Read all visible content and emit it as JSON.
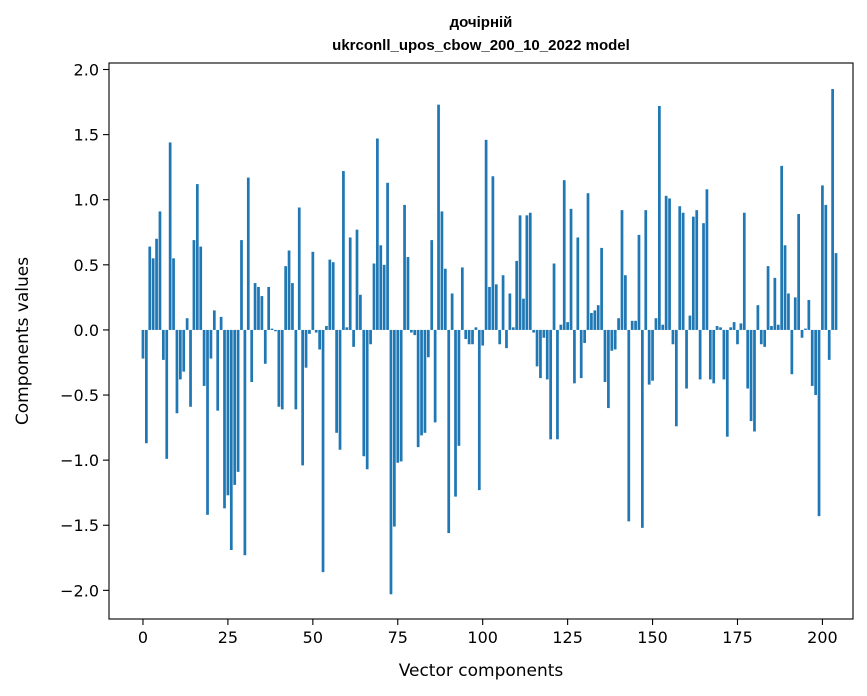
{
  "chart_data": {
    "type": "bar",
    "title": [
      "дочірній",
      "ukrconll_upos_cbow_200_10_2022 model"
    ],
    "xlabel": "Vector components",
    "ylabel": "Components values",
    "xlim": [
      -10,
      209
    ],
    "ylim": [
      -2.22,
      2.05
    ],
    "xticks": [
      0,
      25,
      50,
      75,
      100,
      125,
      150,
      175,
      200
    ],
    "yticks": [
      -2.0,
      -1.5,
      -1.0,
      -0.5,
      0.0,
      0.5,
      1.0,
      1.5,
      2.0
    ],
    "xtick_labels": [
      "0",
      "25",
      "50",
      "75",
      "100",
      "125",
      "150",
      "175",
      "200"
    ],
    "ytick_labels": [
      "−2.0",
      "−1.5",
      "−1.0",
      "−0.5",
      "0.0",
      "0.5",
      "1.0",
      "1.5",
      "2.0"
    ],
    "grid": false,
    "bar_color": "#1f77b4",
    "values": [
      -0.22,
      -0.87,
      0.64,
      0.55,
      0.7,
      0.91,
      -0.23,
      -0.99,
      1.44,
      0.55,
      -0.64,
      -0.38,
      -0.32,
      0.09,
      -0.59,
      0.69,
      1.12,
      0.64,
      -0.43,
      -1.42,
      -0.22,
      0.15,
      -0.62,
      0.1,
      -1.37,
      -1.27,
      -1.69,
      -1.19,
      -1.09,
      0.69,
      -1.73,
      1.17,
      -0.4,
      0.36,
      0.33,
      0.26,
      -0.26,
      0.33,
      0.01,
      -0.01,
      -0.59,
      -0.61,
      0.49,
      0.61,
      0.36,
      -0.61,
      0.94,
      -1.04,
      -0.29,
      -0.03,
      0.6,
      -0.02,
      -0.15,
      -1.86,
      0.03,
      0.54,
      0.52,
      -0.79,
      -0.92,
      1.22,
      0.02,
      0.71,
      -0.13,
      0.77,
      0.27,
      -0.97,
      -1.07,
      -0.11,
      0.51,
      1.47,
      0.65,
      0.5,
      1.13,
      -2.03,
      -1.51,
      -1.02,
      -1.01,
      0.96,
      0.56,
      -0.02,
      -0.04,
      -0.9,
      -0.81,
      -0.79,
      -0.21,
      0.69,
      -0.71,
      1.73,
      0.91,
      0.47,
      -1.56,
      0.28,
      -1.28,
      -0.89,
      0.48,
      -0.07,
      -0.11,
      -0.11,
      0.02,
      -1.23,
      -0.12,
      1.46,
      0.33,
      1.18,
      0.35,
      -0.11,
      0.42,
      -0.14,
      0.28,
      0.02,
      0.53,
      0.88,
      0.24,
      0.88,
      0.9,
      -0.02,
      -0.28,
      -0.37,
      -0.06,
      -0.38,
      -0.84,
      0.51,
      -0.84,
      0.04,
      1.15,
      0.06,
      0.93,
      -0.41,
      0.71,
      -0.37,
      -0.1,
      1.05,
      0.13,
      0.15,
      0.19,
      0.63,
      -0.4,
      -0.6,
      -0.16,
      -0.15,
      0.09,
      0.92,
      0.42,
      -1.47,
      0.07,
      0.07,
      0.73,
      -1.52,
      0.92,
      -0.42,
      -0.39,
      0.09,
      1.72,
      0.04,
      1.03,
      1.01,
      -0.11,
      -0.74,
      0.95,
      0.9,
      -0.45,
      0.11,
      0.87,
      0.92,
      -0.38,
      0.82,
      1.08,
      -0.38,
      -0.41,
      0.03,
      0.02,
      -0.38,
      -0.82,
      0.02,
      0.06,
      -0.11,
      0.05,
      0.9,
      -0.45,
      -0.7,
      -0.78,
      0.19,
      -0.11,
      -0.13,
      0.49,
      0.03,
      0.4,
      0.04,
      1.26,
      0.65,
      0.28,
      -0.34,
      0.25,
      0.89,
      -0.06,
      0.01,
      0.23,
      -0.43,
      -0.5,
      -1.43,
      1.11,
      0.96,
      -0.23,
      1.85,
      0.59
    ]
  }
}
